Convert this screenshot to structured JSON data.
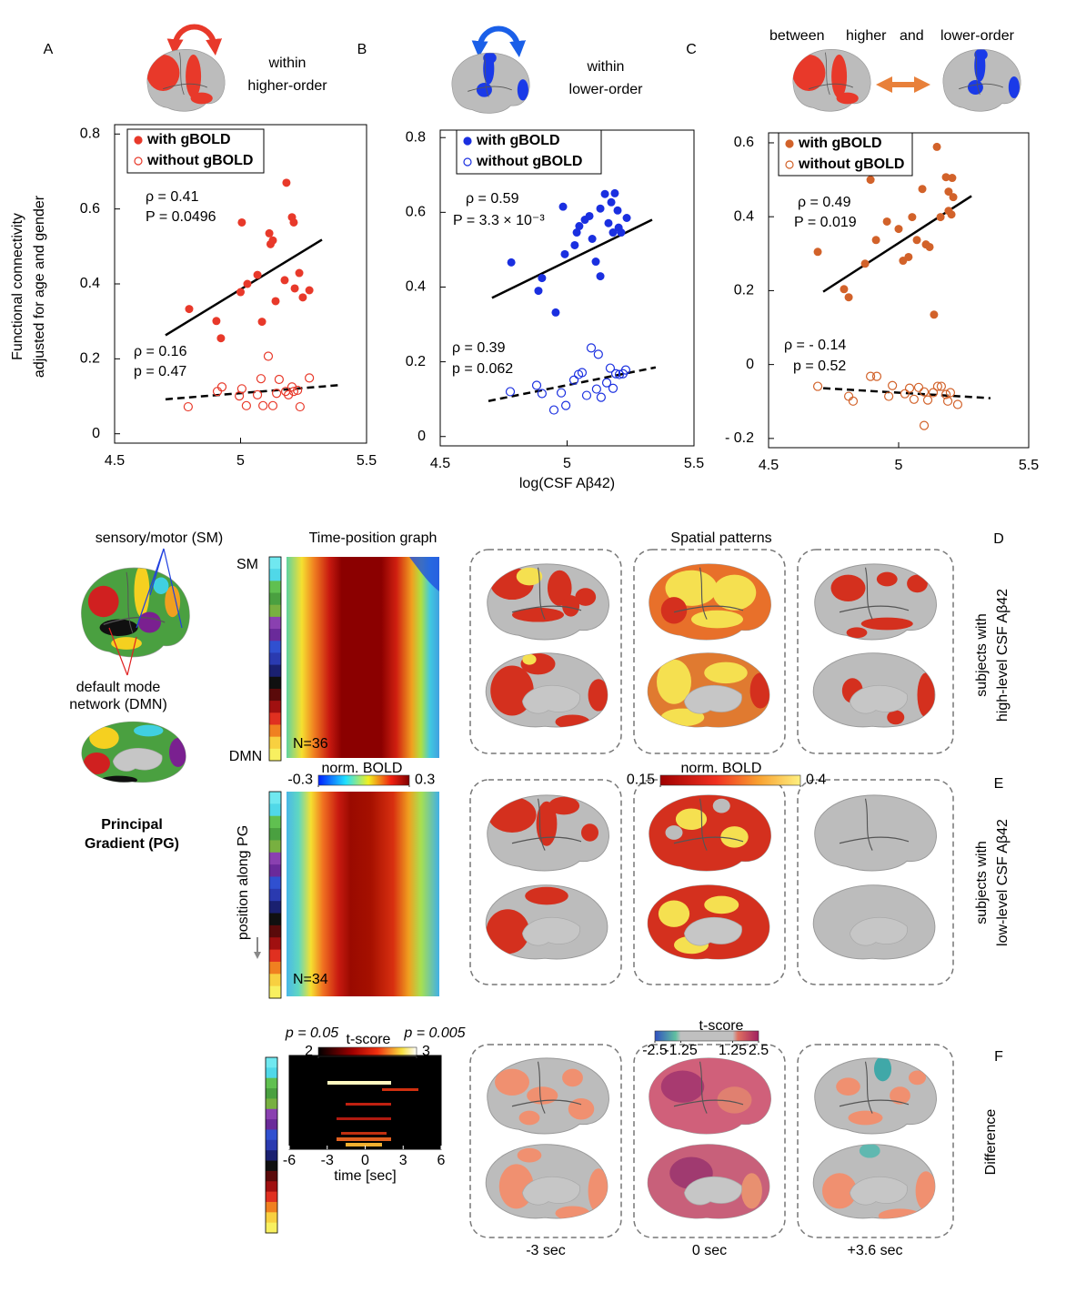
{
  "chart_data": [
    {
      "type": "scatter",
      "label": "A",
      "header": [
        "within",
        "higher-order"
      ],
      "y_label": [
        "Functional connectivity",
        "adjusted for age and gender"
      ],
      "xlim": [
        4.5,
        5.5
      ],
      "xticks": [
        4.5,
        5,
        5.5
      ],
      "ylim": [
        -0.025,
        0.825
      ],
      "yticks": [
        0,
        0.2,
        0.4,
        0.6,
        0.8
      ],
      "series": [
        {
          "name": "with gBOLD",
          "color": "#e8392a",
          "marker": "filled",
          "x": [
            4.796,
            4.904,
            4.922,
            5.005,
            5.0,
            5.027,
            5.067,
            5.085,
            5.114,
            5.119,
            5.128,
            5.139,
            5.175,
            5.182,
            5.204,
            5.211,
            5.215,
            5.233,
            5.247,
            5.273
          ],
          "values": [
            0.333,
            0.301,
            0.255,
            0.564,
            0.378,
            0.4,
            0.424,
            0.299,
            0.535,
            0.506,
            0.516,
            0.354,
            0.41,
            0.67,
            0.578,
            0.564,
            0.388,
            0.429,
            0.364,
            0.383
          ]
        },
        {
          "name": "without gBOLD",
          "color": "#e8392a",
          "marker": "open",
          "x": [
            4.792,
            4.908,
            4.926,
            4.995,
            5.005,
            5.023,
            5.067,
            5.081,
            5.089,
            5.11,
            5.128,
            5.143,
            5.153,
            5.179,
            5.19,
            5.204,
            5.211,
            5.226,
            5.236,
            5.273
          ],
          "values": [
            0.072,
            0.113,
            0.125,
            0.101,
            0.12,
            0.075,
            0.104,
            0.147,
            0.075,
            0.207,
            0.075,
            0.108,
            0.145,
            0.113,
            0.104,
            0.125,
            0.113,
            0.116,
            0.072,
            0.149
          ]
        }
      ],
      "fits": [
        {
          "x": [
            4.702,
            5.323
          ],
          "values": [
            0.263,
            0.518
          ],
          "style": "solid"
        },
        {
          "x": [
            4.702,
            5.395
          ],
          "values": [
            0.092,
            0.13
          ],
          "style": "dashed"
        }
      ],
      "annotations": [
        {
          "text": "ρ = 0.41",
          "color": "#000000"
        },
        {
          "text": "P = 0.0496",
          "color": "#000000"
        },
        {
          "text": "ρ = 0.16",
          "color": "#808080"
        },
        {
          "text": "p = 0.47",
          "color": "#808080"
        }
      ]
    },
    {
      "type": "scatter",
      "label": "B",
      "header": [
        "within",
        "lower-order"
      ],
      "x_label": "log(CSF Aβ42)",
      "xlim": [
        4.5,
        5.5
      ],
      "xticks": [
        4.5,
        5,
        5.5
      ],
      "ylim": [
        -0.025,
        0.82
      ],
      "yticks": [
        0,
        0.2,
        0.4,
        0.6,
        0.8
      ],
      "series": [
        {
          "name": "with gBOLD",
          "color": "#1a2fe0",
          "marker": "filled",
          "x": [
            4.78,
            4.887,
            4.901,
            4.955,
            4.984,
            4.991,
            5.03,
            5.038,
            5.048,
            5.07,
            5.088,
            5.099,
            5.113,
            5.131,
            5.131,
            5.149,
            5.163,
            5.174,
            5.181,
            5.188,
            5.199,
            5.203,
            5.213,
            5.235
          ],
          "values": [
            0.466,
            0.39,
            0.424,
            0.332,
            0.615,
            0.488,
            0.512,
            0.546,
            0.563,
            0.58,
            0.59,
            0.529,
            0.468,
            0.429,
            0.61,
            0.649,
            0.571,
            0.627,
            0.546,
            0.651,
            0.605,
            0.559,
            0.546,
            0.585
          ]
        },
        {
          "name": "without gBOLD",
          "color": "#1a2fe0",
          "marker": "open",
          "x": [
            4.776,
            4.88,
            4.901,
            4.948,
            4.977,
            4.995,
            5.027,
            5.045,
            5.059,
            5.077,
            5.095,
            5.116,
            5.123,
            5.134,
            5.156,
            5.17,
            5.181,
            5.192,
            5.206,
            5.22,
            5.231
          ],
          "values": [
            0.12,
            0.137,
            0.115,
            0.071,
            0.117,
            0.083,
            0.151,
            0.166,
            0.171,
            0.11,
            0.237,
            0.127,
            0.22,
            0.105,
            0.144,
            0.183,
            0.129,
            0.168,
            0.166,
            0.168,
            0.178
          ]
        }
      ],
      "fits": [
        {
          "x": [
            4.704,
            5.335
          ],
          "values": [
            0.371,
            0.58
          ],
          "style": "solid"
        },
        {
          "x": [
            4.69,
            5.349
          ],
          "values": [
            0.095,
            0.185
          ],
          "style": "dashed"
        }
      ],
      "annotations": [
        {
          "text": "ρ = 0.59",
          "color": "#000000"
        },
        {
          "text": "P = 3.3 × 10⁻³",
          "color": "#000000"
        },
        {
          "text": "ρ = 0.39",
          "color": "#808080"
        },
        {
          "text": "p = 0.062",
          "color": "#808080"
        }
      ]
    },
    {
      "type": "scatter",
      "label": "C",
      "header": [
        "between",
        "higher",
        "and",
        "lower-order"
      ],
      "xlim": [
        4.5,
        5.5
      ],
      "xticks": [
        4.5,
        5,
        5.5
      ],
      "ylim": [
        -0.225,
        0.627
      ],
      "yticks": [
        {
          "value": -0.2,
          "label": "- 0.2"
        },
        0,
        0.2,
        0.4,
        0.6
      ],
      "series": [
        {
          "name": "with gBOLD",
          "color": "#d2622a",
          "marker": "filled",
          "x": [
            4.689,
            4.79,
            4.808,
            4.892,
            4.871,
            4.913,
            4.955,
            5.0,
            5.017,
            5.038,
            5.052,
            5.07,
            5.091,
            5.105,
            5.119,
            5.136,
            5.147,
            5.161,
            5.182,
            5.192,
            5.192,
            5.206,
            5.203,
            5.21
          ],
          "values": [
            0.305,
            0.204,
            0.182,
            0.5,
            0.273,
            0.337,
            0.387,
            0.367,
            0.281,
            0.291,
            0.399,
            0.337,
            0.475,
            0.325,
            0.318,
            0.135,
            0.589,
            0.399,
            0.507,
            0.468,
            0.416,
            0.505,
            0.406,
            0.453
          ]
        },
        {
          "name": "without gBOLD",
          "color": "#d2622a",
          "marker": "open",
          "x": [
            4.689,
            4.808,
            4.825,
            4.892,
            4.916,
            4.962,
            4.976,
            5.024,
            5.042,
            5.059,
            5.077,
            5.098,
            5.098,
            5.112,
            5.133,
            5.15,
            5.164,
            5.182,
            5.189,
            5.199,
            5.227
          ],
          "values": [
            -0.059,
            -0.086,
            -0.099,
            -0.032,
            -0.032,
            -0.086,
            -0.057,
            -0.079,
            -0.064,
            -0.094,
            -0.062,
            -0.074,
            -0.165,
            -0.096,
            -0.076,
            -0.059,
            -0.059,
            -0.081,
            -0.099,
            -0.076,
            -0.108
          ]
        }
      ],
      "fits": [
        {
          "x": [
            4.71,
            5.28
          ],
          "values": [
            0.197,
            0.456
          ],
          "style": "solid"
        },
        {
          "x": [
            4.71,
            5.353
          ],
          "values": [
            -0.064,
            -0.091
          ],
          "style": "dashed"
        }
      ],
      "annotations": [
        {
          "text": "ρ = 0.49",
          "color": "#000000"
        },
        {
          "text": "P = 0.019",
          "color": "#000000"
        },
        {
          "text": "ρ = - 0.14",
          "color": "#808080"
        },
        {
          "text": "p = 0.52",
          "color": "#808080"
        }
      ]
    }
  ],
  "figure": {
    "pg_labels": {
      "sm": "sensory/motor (SM)",
      "dmn": [
        "default mode",
        "network (DMN)"
      ],
      "title": [
        "Principal",
        "Gradient (PG)"
      ]
    },
    "time_position_title": "Time-position graph",
    "spatial_title": "Spatial patterns",
    "rows": [
      {
        "label": "D",
        "side": [
          "subjects with",
          "high-level CSF Aβ42"
        ],
        "n": "N=36",
        "top": "SM",
        "bottom": "DMN"
      },
      {
        "label": "E",
        "side": [
          "subjects with",
          "low-level CSF Aβ42"
        ],
        "n": "N=34",
        "axis": "position along PG"
      },
      {
        "label": "F",
        "side": [
          "Difference"
        ],
        "times": [
          "-3 sec",
          "0 sec",
          "+3.6 sec"
        ]
      }
    ],
    "colorbars": [
      {
        "label": "norm. BOLD",
        "lim": [
          -0.3,
          0.3
        ],
        "ticks": [
          -0.3,
          0.3
        ]
      },
      {
        "label": "norm. BOLD",
        "lim": [
          0.15,
          0.4
        ],
        "ticks": [
          0.15,
          0.4
        ]
      },
      {
        "label": "t-score",
        "lim": [
          2,
          3
        ],
        "ticks": [
          2,
          3
        ],
        "notes": [
          "p = 0.05",
          "p = 0.005"
        ]
      },
      {
        "label": "t-score",
        "lim": [
          -2.5,
          2.5
        ],
        "ticks": [
          -2.5,
          -1.25,
          1.25,
          2.5
        ]
      }
    ],
    "time_axis": {
      "label": "time [sec]",
      "xlim": [
        -6,
        6
      ],
      "xticks": [
        -6,
        -3,
        0,
        3,
        6
      ]
    }
  }
}
